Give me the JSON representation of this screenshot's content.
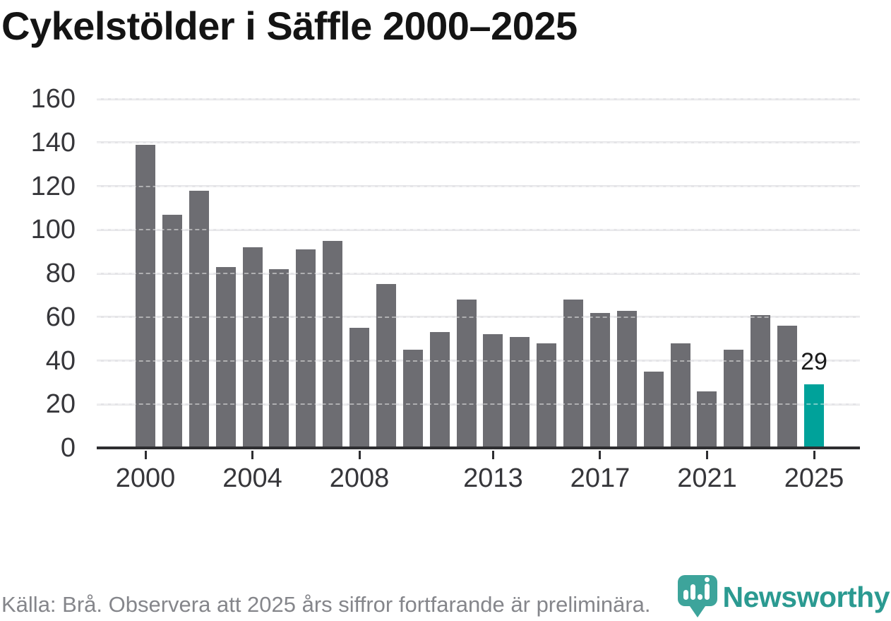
{
  "title": "Cykelstölder i Säffle 2000–2025",
  "chart_data": {
    "type": "bar",
    "x": [
      2000,
      2001,
      2002,
      2003,
      2004,
      2005,
      2006,
      2007,
      2008,
      2009,
      2010,
      2011,
      2012,
      2013,
      2014,
      2015,
      2016,
      2017,
      2018,
      2019,
      2020,
      2021,
      2022,
      2023,
      2024,
      2025
    ],
    "values": [
      139,
      107,
      118,
      83,
      92,
      82,
      91,
      95,
      55,
      75,
      45,
      53,
      68,
      52,
      51,
      48,
      68,
      62,
      63,
      35,
      48,
      26,
      45,
      61,
      56,
      29
    ],
    "title": "Cykelstölder i Säffle 2000–2025",
    "xlabel": "",
    "ylabel": "",
    "ylim": [
      0,
      160
    ],
    "y_ticks": [
      0,
      20,
      40,
      60,
      80,
      100,
      120,
      140,
      160
    ],
    "x_tick_years": [
      2000,
      2004,
      2008,
      2013,
      2017,
      2021,
      2025
    ],
    "grid": true,
    "legend": "none",
    "bar_color": "#6d6d72",
    "highlight_year": 2025,
    "highlight_color": "#00a29a",
    "bar_label": {
      "year": 2025,
      "text": "29"
    }
  },
  "footer": {
    "source_note": "Källa: Brå. Observera att 2025 års siffror fortfarande är preliminära."
  },
  "brand": {
    "name": "Newsworthy",
    "logo_icon": "newsworthy-pin-bar-chart-icon",
    "text_color": "#2b9a91",
    "pin_color": "#3da49b"
  }
}
